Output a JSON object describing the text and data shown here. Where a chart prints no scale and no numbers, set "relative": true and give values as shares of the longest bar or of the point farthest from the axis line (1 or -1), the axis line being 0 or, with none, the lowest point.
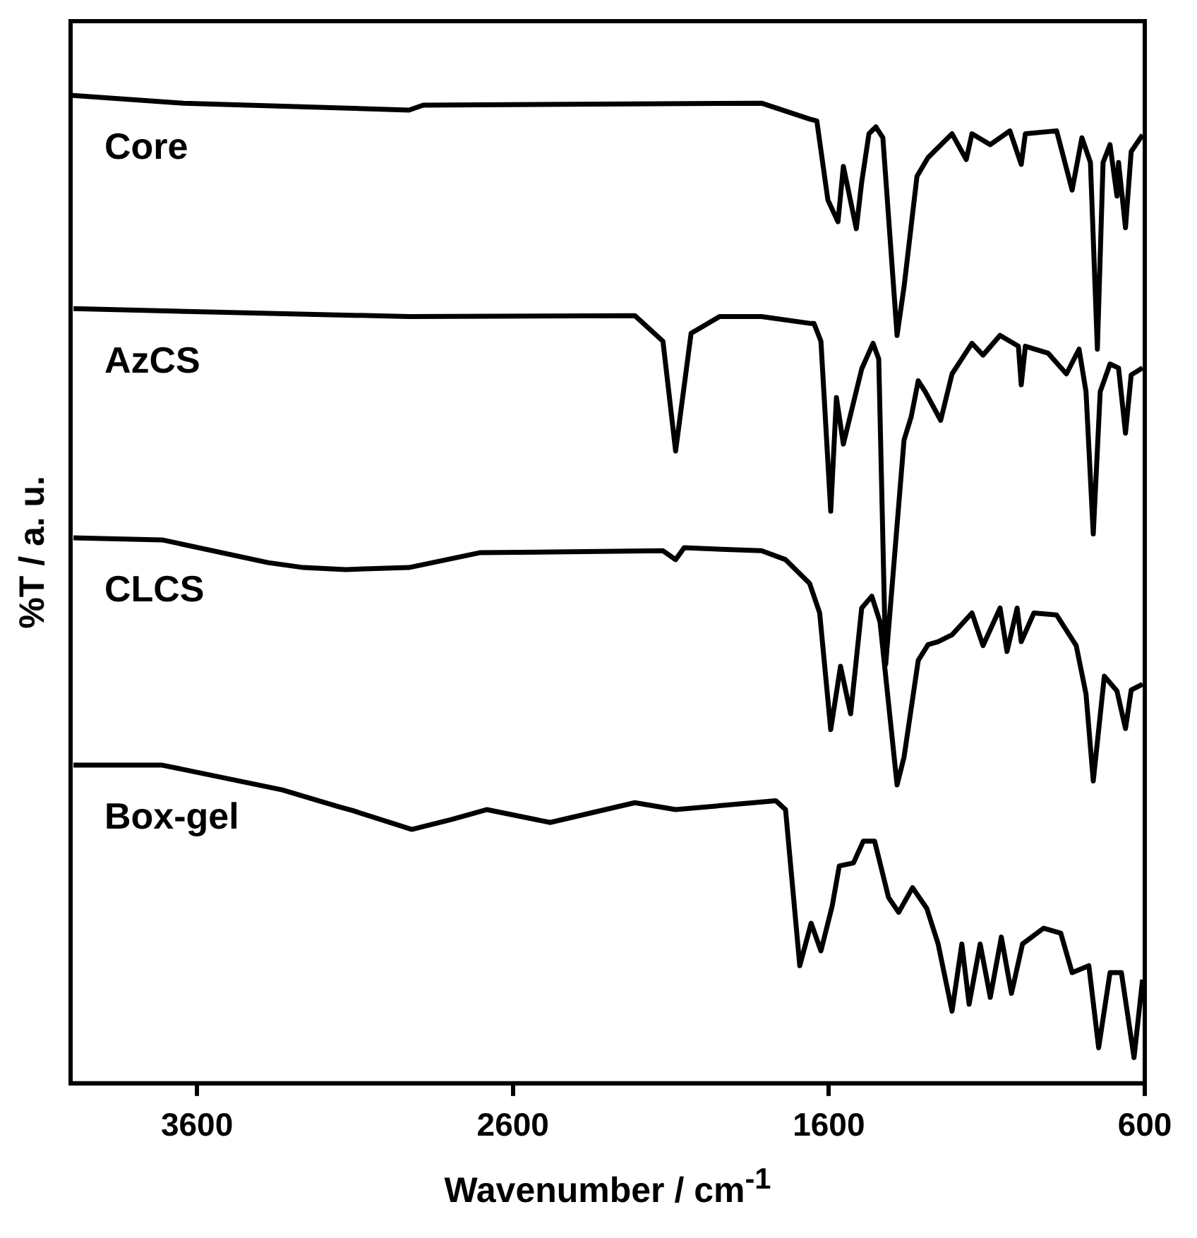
{
  "chart_data": {
    "type": "line",
    "xlabel": "Wavenumber / cm$^{-1}$",
    "ylabel": "%T / a. u.",
    "relative": true,
    "xlim": [
      4000,
      600
    ],
    "xticks": [
      3600,
      2600,
      1600,
      600
    ],
    "grid": false,
    "legend": false,
    "marker": "none",
    "line_style": "solid",
    "series": [
      {
        "name": "Core",
        "color": "#000000",
        "x": [
          4000,
          3643,
          2929,
          2884,
          1813,
          1661,
          1638,
          1603,
          1571,
          1554,
          1513,
          1496,
          1473,
          1451,
          1429,
          1384,
          1362,
          1321,
          1286,
          1210,
          1165,
          1147,
          1089,
          1027,
          991,
          978,
          879,
          830,
          799,
          772,
          750,
          732,
          710,
          688,
          683,
          661,
          643,
          607
        ],
        "values": [
          1,
          0.992,
          0.985,
          0.99,
          0.992,
          0.976,
          0.974,
          0.894,
          0.872,
          0.928,
          0.865,
          0.912,
          0.961,
          0.968,
          0.957,
          0.757,
          0.806,
          0.918,
          0.937,
          0.961,
          0.935,
          0.961,
          0.95,
          0.964,
          0.93,
          0.961,
          0.964,
          0.904,
          0.957,
          0.932,
          0.743,
          0.932,
          0.95,
          0.898,
          0.932,
          0.866,
          0.943,
          0.96
        ]
      },
      {
        "name": "AzCS",
        "color": "#000000",
        "x": [
          3991,
          2929,
          2214,
          2125,
          2085,
          2036,
          1946,
          1813,
          1656,
          1647,
          1625,
          1594,
          1576,
          1554,
          1496,
          1460,
          1442,
          1420,
          1362,
          1339,
          1317,
          1295,
          1246,
          1210,
          1147,
          1112,
          1058,
          1000,
          991,
          978,
          906,
          848,
          808,
          786,
          763,
          741,
          710,
          683,
          661,
          643,
          607
        ],
        "values": [
          0.784,
          0.776,
          0.777,
          0.751,
          0.64,
          0.759,
          0.776,
          0.776,
          0.769,
          0.769,
          0.751,
          0.579,
          0.694,
          0.647,
          0.723,
          0.749,
          0.733,
          0.424,
          0.651,
          0.675,
          0.711,
          0.7,
          0.671,
          0.718,
          0.749,
          0.737,
          0.757,
          0.746,
          0.707,
          0.746,
          0.739,
          0.718,
          0.743,
          0.7,
          0.556,
          0.7,
          0.728,
          0.724,
          0.658,
          0.717,
          0.724
        ]
      },
      {
        "name": "CLCS",
        "color": "#000000",
        "x": [
          3991,
          3710,
          3375,
          3263,
          3129,
          2929,
          2705,
          2125,
          2085,
          2058,
          1813,
          1737,
          1661,
          1629,
          1594,
          1563,
          1531,
          1496,
          1464,
          1438,
          1384,
          1362,
          1317,
          1286,
          1254,
          1210,
          1147,
          1112,
          1058,
          1036,
          1004,
          991,
          951,
          879,
          817,
          786,
          763,
          728,
          688,
          661,
          643,
          607
        ],
        "values": [
          0.552,
          0.55,
          0.527,
          0.522,
          0.52,
          0.522,
          0.537,
          0.539,
          0.53,
          0.542,
          0.539,
          0.53,
          0.506,
          0.476,
          0.358,
          0.422,
          0.374,
          0.481,
          0.493,
          0.467,
          0.302,
          0.33,
          0.428,
          0.444,
          0.447,
          0.454,
          0.476,
          0.443,
          0.481,
          0.437,
          0.481,
          0.447,
          0.476,
          0.474,
          0.443,
          0.394,
          0.306,
          0.412,
          0.397,
          0.359,
          0.398,
          0.404
        ]
      },
      {
        "name": "Box-gel",
        "color": "#000000",
        "x": [
          3991,
          3710,
          3330,
          3152,
          3107,
          2920,
          2795,
          2683,
          2482,
          2214,
          2085,
          1768,
          1737,
          1692,
          1656,
          1625,
          1589,
          1567,
          1522,
          1491,
          1455,
          1411,
          1379,
          1335,
          1290,
          1254,
          1210,
          1179,
          1156,
          1121,
          1089,
          1054,
          1022,
          987,
          920,
          866,
          830,
          777,
          746,
          710,
          674,
          634,
          607
        ],
        "values": [
          0.322,
          0.322,
          0.297,
          0.28,
          0.276,
          0.257,
          0.267,
          0.277,
          0.264,
          0.284,
          0.277,
          0.286,
          0.277,
          0.119,
          0.162,
          0.134,
          0.18,
          0.22,
          0.223,
          0.245,
          0.245,
          0.188,
          0.173,
          0.198,
          0.177,
          0.141,
          0.073,
          0.141,
          0.08,
          0.141,
          0.087,
          0.148,
          0.091,
          0.141,
          0.157,
          0.152,
          0.112,
          0.119,
          0.036,
          0.112,
          0.112,
          0.026,
          0.105
        ]
      }
    ]
  }
}
